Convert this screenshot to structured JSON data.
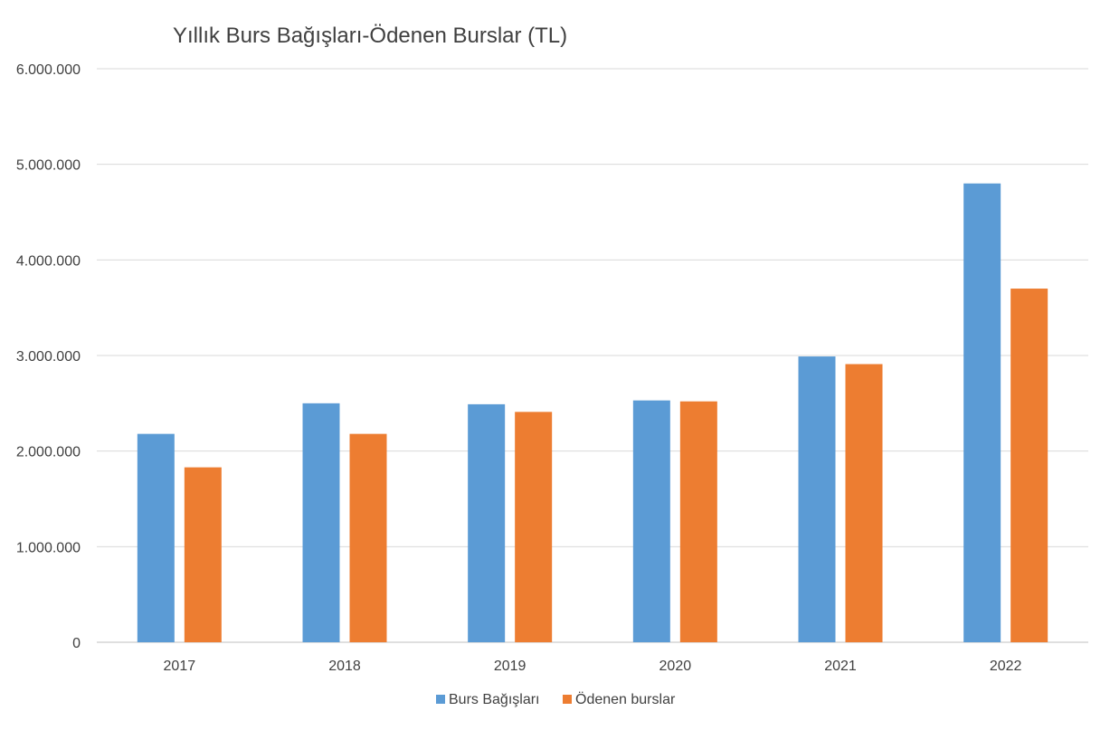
{
  "chart_data": {
    "type": "bar",
    "title": "Yıllık Burs Bağışları-Ödenen Burslar (TL)",
    "xlabel": "",
    "ylabel": "",
    "categories": [
      "2017",
      "2018",
      "2019",
      "2020",
      "2021",
      "2022"
    ],
    "series": [
      {
        "name": "Burs Bağışları",
        "color": "#5B9BD5",
        "values": [
          2180000,
          2500000,
          2490000,
          2530000,
          2990000,
          4800000
        ]
      },
      {
        "name": "Ödenen burslar",
        "color": "#ED7D31",
        "values": [
          1830000,
          2180000,
          2410000,
          2520000,
          2910000,
          3700000
        ]
      }
    ],
    "ylim": [
      0,
      6000000
    ],
    "y_ticks": [
      {
        "value": 0,
        "label": "0"
      },
      {
        "value": 1000000,
        "label": "1.000.000"
      },
      {
        "value": 2000000,
        "label": "2.000.000"
      },
      {
        "value": 3000000,
        "label": "3.000.000"
      },
      {
        "value": 4000000,
        "label": "4.000.000"
      },
      {
        "value": 5000000,
        "label": "5.000.000"
      },
      {
        "value": 6000000,
        "label": "6.000.000"
      }
    ],
    "grid": true,
    "legend_position": "bottom"
  }
}
